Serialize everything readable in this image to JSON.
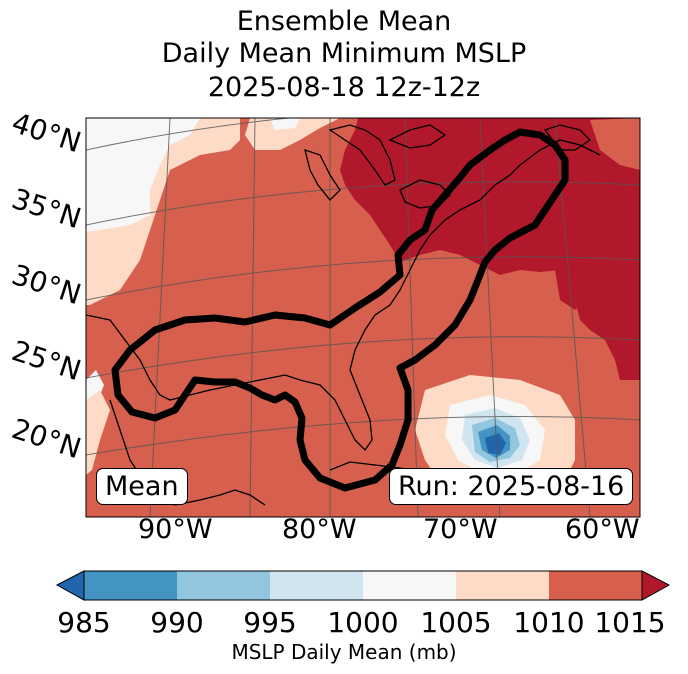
{
  "title": {
    "line1": "Ensemble Mean",
    "line2": "Daily Mean Minimum MSLP",
    "line3": "2025-08-18 12z-12z"
  },
  "latitude_labels": [
    "40°N",
    "35°N",
    "30°N",
    "25°N",
    "20°N"
  ],
  "longitude_labels": [
    "90°W",
    "80°W",
    "70°W",
    "60°W"
  ],
  "mean_label": "Mean",
  "run_label": "Run: 2025-08-16",
  "colorbar": {
    "ticks": [
      "985",
      "990",
      "995",
      "1000",
      "1005",
      "1010",
      "1015"
    ],
    "label": "MSLP Daily Mean (mb)",
    "colors": [
      "#2166ac",
      "#4393c3",
      "#92c5de",
      "#d1e5f0",
      "#f7f7f7",
      "#fddbc7",
      "#d6604d",
      "#b2182b"
    ]
  }
}
